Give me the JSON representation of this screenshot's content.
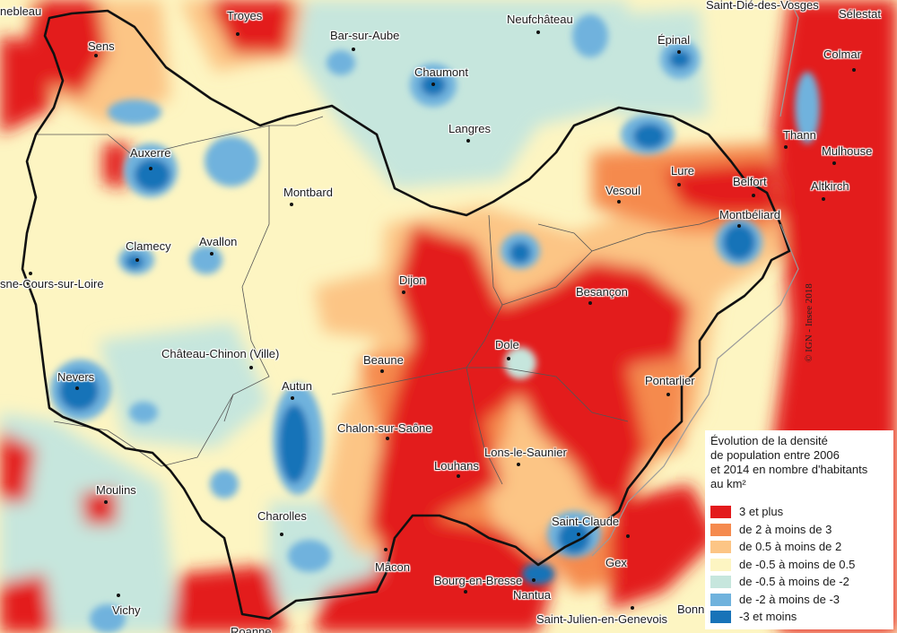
{
  "map": {
    "title": "Évolution de la densité\nde population entre 2006\net 2014 en nombre d'habitants\nau km²",
    "credit": "© IGN - Insee 2018",
    "legend": [
      {
        "label": "3 et plus",
        "color": "#e31a1c"
      },
      {
        "label": "de 2 à moins de 3",
        "color": "#f58a4e"
      },
      {
        "label": "de 0.5 à moins de 2",
        "color": "#fcc585"
      },
      {
        "label": "de -0.5 à moins de 0.5",
        "color": "#fdf5c2"
      },
      {
        "label": "de -0.5 à moins de -2",
        "color": "#c6e6dd"
      },
      {
        "label": "de -2 à moins de -3",
        "color": "#6fb2dd"
      },
      {
        "label": "-3 et moins",
        "color": "#1873b8"
      }
    ],
    "cities": [
      {
        "name": "nebleau"
      },
      {
        "name": "Sens"
      },
      {
        "name": "Troyes"
      },
      {
        "name": "Bar-sur-Aube"
      },
      {
        "name": "Neufchâteau"
      },
      {
        "name": "Saint-Dié-des-Vosges"
      },
      {
        "name": "Sélestat"
      },
      {
        "name": "Épinal"
      },
      {
        "name": "Colmar"
      },
      {
        "name": "Chaumont"
      },
      {
        "name": "Langres"
      },
      {
        "name": "Auxerre"
      },
      {
        "name": "Montbard"
      },
      {
        "name": "Thann"
      },
      {
        "name": "Mulhouse"
      },
      {
        "name": "Altkirch"
      },
      {
        "name": "Lure"
      },
      {
        "name": "Belfort"
      },
      {
        "name": "Vesoul"
      },
      {
        "name": "Montbéliard"
      },
      {
        "name": "Clamecy"
      },
      {
        "name": "Avallon"
      },
      {
        "name": "sne-Cours-sur-Loire"
      },
      {
        "name": "Dijon"
      },
      {
        "name": "Besançon"
      },
      {
        "name": "Dole"
      },
      {
        "name": "Château-Chinon (Ville)"
      },
      {
        "name": "Beaune"
      },
      {
        "name": "Nevers"
      },
      {
        "name": "Autun"
      },
      {
        "name": "Pontarlier"
      },
      {
        "name": "Chalon-sur-Saône"
      },
      {
        "name": "Lons-le-Saunier"
      },
      {
        "name": "Louhans"
      },
      {
        "name": "Moulins"
      },
      {
        "name": "Charolles"
      },
      {
        "name": "Saint-Claude"
      },
      {
        "name": "Mâcon"
      },
      {
        "name": "Gex"
      },
      {
        "name": "Bourg-en-Bresse"
      },
      {
        "name": "Nantua"
      },
      {
        "name": "Vichy"
      },
      {
        "name": "Saint-Julien-en-Genevois"
      },
      {
        "name": "Bonn"
      },
      {
        "name": "Roanne"
      }
    ]
  }
}
